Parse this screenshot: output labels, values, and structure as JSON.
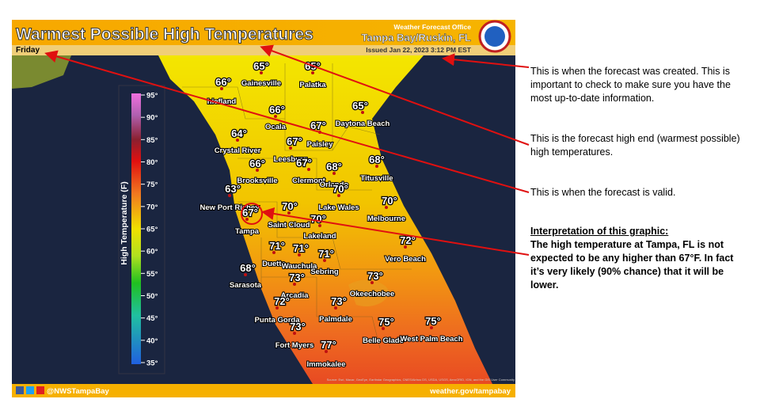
{
  "header": {
    "title": "Warmest Possible High Temperatures",
    "day": "Friday",
    "office": "Weather Forecast Office",
    "location": "Tampa Bay/Ruskin, FL",
    "issued": "Issued Jan 22, 2023 3:12 PM EST"
  },
  "legend": {
    "label": "High Temperature (F)",
    "ticks": [
      "95°",
      "90°",
      "85°",
      "80°",
      "75°",
      "70°",
      "65°",
      "60°",
      "55°",
      "50°",
      "45°",
      "40°",
      "35°"
    ]
  },
  "cities": [
    {
      "name": "Gainesville",
      "temp": "65°"
    },
    {
      "name": "Palatka",
      "temp": "65°"
    },
    {
      "name": "hiefland",
      "temp": "66°"
    },
    {
      "name": "Ocala",
      "temp": "66°"
    },
    {
      "name": "Daytona Beach",
      "temp": "65°"
    },
    {
      "name": "Paisley",
      "temp": "67°"
    },
    {
      "name": "Crystal River",
      "temp": "64°"
    },
    {
      "name": "Leesburg",
      "temp": "67°"
    },
    {
      "name": "Brooksville",
      "temp": "66°"
    },
    {
      "name": "Clermont",
      "temp": "67°"
    },
    {
      "name": "Orlando",
      "temp": "68°"
    },
    {
      "name": "Titusville",
      "temp": "68°"
    },
    {
      "name": "New Port Richey",
      "temp": "63°"
    },
    {
      "name": "Saint Cloud",
      "temp": "70°"
    },
    {
      "name": "Melbourne",
      "temp": "70°"
    },
    {
      "name": "Tampa",
      "temp": "67°"
    },
    {
      "name": "Lakeland",
      "temp": "70°"
    },
    {
      "name": "Lake Wales",
      "temp": "70°"
    },
    {
      "name": "Vero Beach",
      "temp": "72°"
    },
    {
      "name": "Duette",
      "temp": "71°"
    },
    {
      "name": "Wauchula",
      "temp": "71°"
    },
    {
      "name": "Sebring",
      "temp": "71°"
    },
    {
      "name": "Sarasota",
      "temp": "68°"
    },
    {
      "name": "Arcadia",
      "temp": "73°"
    },
    {
      "name": "Okeechobee",
      "temp": "73°"
    },
    {
      "name": "Punta Gorda",
      "temp": "72°"
    },
    {
      "name": "Palmdale",
      "temp": "73°"
    },
    {
      "name": "Fort Myers",
      "temp": "73°"
    },
    {
      "name": "Belle Glade",
      "temp": "75°"
    },
    {
      "name": "West Palm Beach",
      "temp": "75°"
    },
    {
      "name": "Immokalee",
      "temp": "77°"
    }
  ],
  "footer": {
    "handle": "@NWSTampaBay",
    "url": "weather.gov/tampabay",
    "source": "Source: Esri, Maxar, GeoEye, Earthstar Geographics, CNES/Airbus DS, USDA, USGS, AeroGRID, IGN, and the GIS User Community"
  },
  "notes": [
    {
      "text": "This is when the forecast was created.  This is important to check to make sure you have the most up-to-date information."
    },
    {
      "text": "This is the forecast high end (warmest possible) high temperatures."
    },
    {
      "text": "This is when the forecast is valid."
    },
    {
      "heading": "Interpretation of this graphic:",
      "text": "The high temperature at Tampa, FL is not expected to be any higher than 67°F.  In fact it’s very likely (90% chance) that it will be lower."
    }
  ]
}
